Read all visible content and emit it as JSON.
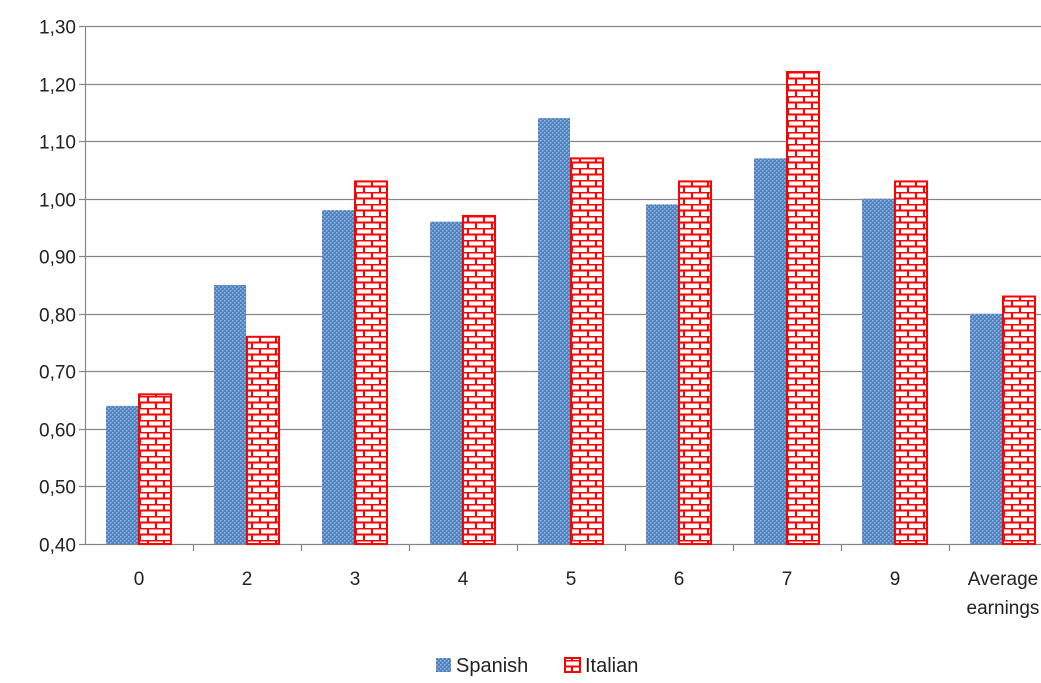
{
  "chart_data": {
    "type": "bar",
    "categories": [
      "0",
      "2",
      "3",
      "4",
      "5",
      "6",
      "7",
      "9",
      "Average earnings"
    ],
    "category_labels": [
      [
        "0"
      ],
      [
        "2"
      ],
      [
        "3"
      ],
      [
        "4"
      ],
      [
        "5"
      ],
      [
        "6"
      ],
      [
        "7"
      ],
      [
        "9"
      ],
      [
        "Average",
        "earnings"
      ]
    ],
    "series": [
      {
        "name": "Spanish",
        "values": [
          0.64,
          0.85,
          0.98,
          0.96,
          1.14,
          0.99,
          1.07,
          1.0,
          0.8
        ],
        "color": "#4f81bd",
        "pattern": "dots"
      },
      {
        "name": "Italian",
        "values": [
          0.66,
          0.76,
          1.03,
          0.97,
          1.07,
          1.03,
          1.22,
          1.03,
          0.83
        ],
        "color": "#ff0000",
        "pattern": "bricks"
      }
    ],
    "ylim": [
      0.4,
      1.3
    ],
    "yticks": [
      "0,40",
      "0,50",
      "0,60",
      "0,70",
      "0,80",
      "0,90",
      "1,00",
      "1,10",
      "1,20",
      "1,30"
    ],
    "grid": true,
    "legend_position": "bottom"
  }
}
